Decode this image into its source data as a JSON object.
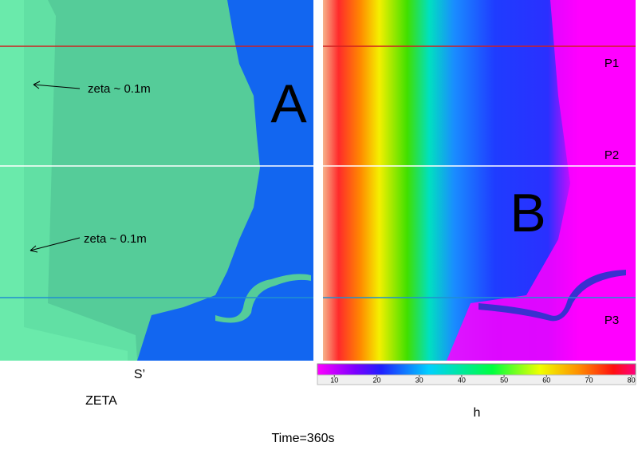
{
  "panel_a": {
    "label": "A",
    "annotations": [
      "zeta ~ 0.1m",
      "zeta ~ 0.1m"
    ],
    "section_label": "S’",
    "variable": "ZETA"
  },
  "panel_b": {
    "label": "B",
    "profiles": [
      "P1",
      "P2",
      "P3"
    ],
    "variable": "h"
  },
  "colorbar": {
    "lim": [
      6,
      81
    ],
    "ticks": [
      10,
      20,
      30,
      40,
      50,
      60,
      70,
      80
    ]
  },
  "caption": "Time=360s"
}
